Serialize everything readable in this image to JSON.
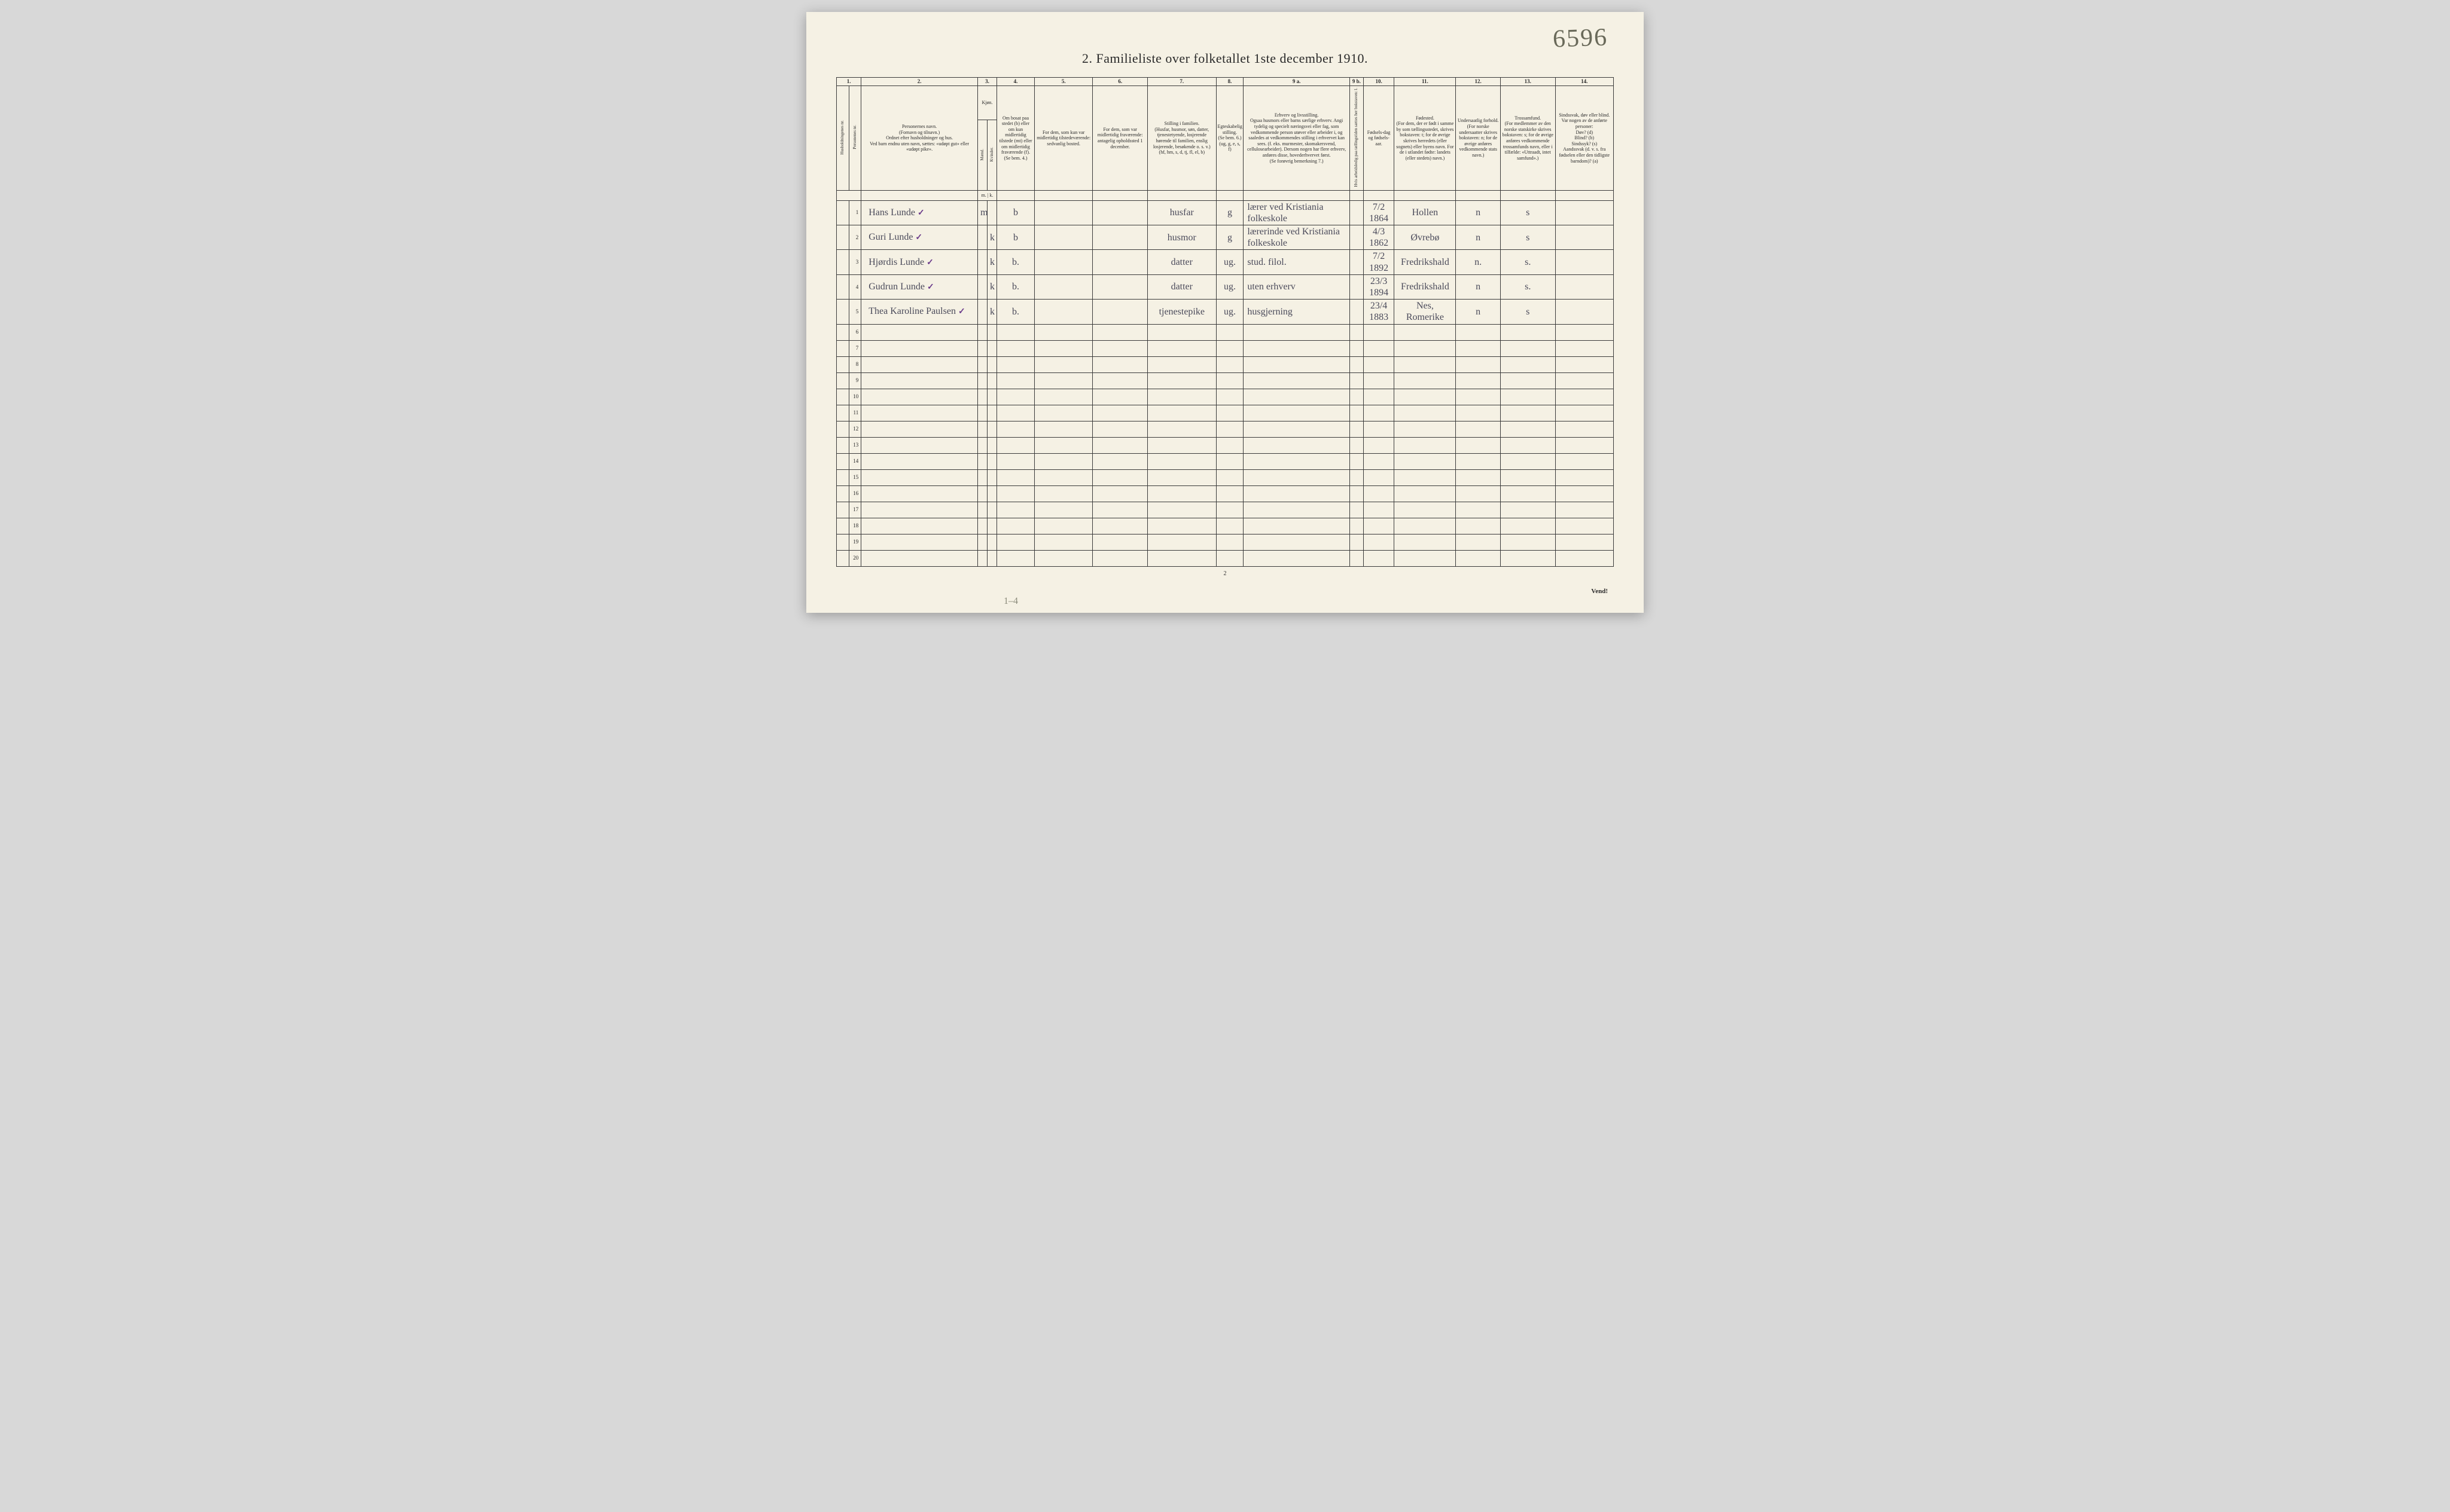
{
  "corner_annotation": "6596",
  "title": "2.  Familieliste over  folketallet 1ste december 1910.",
  "colnums": [
    "1.",
    "2.",
    "3.",
    "4.",
    "5.",
    "6.",
    "7.",
    "8.",
    "9 a.",
    "9 b.",
    "10.",
    "11.",
    "12.",
    "13.",
    "14."
  ],
  "headers": {
    "col1a": "Husholdningenes nr.",
    "col1b": "Personenes nr.",
    "col2": "Personernes navn.\n(Fornavn og tilnavn.)\nOrdnet efter husholdninger og hus.\nVed barn endnu uten navn, sættes: «udøpt gut» eller «udøpt pike».",
    "col3": "Kjøn.",
    "col3a": "Mænd.",
    "col3b": "Kvinder.",
    "col3_mk": "m. | k.",
    "col4": "Om bosat paa stedet (b) eller om kun midlertidig tilstede (mt) eller om midlertidig fraværende (f). (Se bem. 4.)",
    "col5": "For dem, som kun var midlertidig tilstedeværende:\nsedvanlig bosted.",
    "col6": "For dem, som var midlertidig fraværende:\nantagelig opholdssted 1 december.",
    "col7": "Stilling i familien.\n(Husfar, husmor, søn, datter, tjenestetyende, losjerende hørende til familien, enslig losjerende, besøkende o. s. v.)\n(hf, hm, s, d, tj, fl, el, b)",
    "col8": "Egteskabelig stilling.\n(Se bem. 6.)\n(ug, g, e, s, f)",
    "col9a": "Erhverv og livsstilling.\nOgsaa husmors eller barns særlige erhverv. Angi tydelig og specielt næringsvei eller fag, som vedkommende person utøver eller arbeider i, og saaledes at vedkommendes stilling i erhvervet kan sees. (f. eks. murmester, skomakersvend, cellulosearbeider). Dersom nogen har flere erhverv, anføres disse, hovederhvervet først.\n(Se forøvrig bemerkning 7.)",
    "col9b": "Hvis arbeidsledig paa tællingstiden sættes her bokstaven: l.",
    "col10": "Fødsels-dag og fødsels-aar.",
    "col11": "Fødested.\n(For dem, der er født i samme by som tællingsstedet, skrives bokstaven: t; for de øvrige skrives herredets (eller sognets) eller byens navn. For de i utlandet fødte: landets (eller stedets) navn.)",
    "col12": "Undersaatlig forhold.\n(For norske undersaatter skrives bokstaven: n; for de øvrige anføres vedkommende stats navn.)",
    "col13": "Trossamfund.\n(For medlemmer av den norske statskirke skrives bokstaven: s; for de øvrige anføres vedkommende trossamfunds navn, eller i tilfælde: «Uttraadt, intet samfund».)",
    "col14": "Sindssvak, døv eller blind.\nVar nogen av de anførte personer:\nDøv? (d)\nBlind? (b)\nSindssyk? (s)\nAandssvak (d. v. s. fra fødselen eller den tidligste barndom)? (a)"
  },
  "rows": [
    {
      "num": "1",
      "name": "Hans Lunde",
      "check": "✓",
      "sex": "m",
      "res": "b",
      "pos": "husfar",
      "mar": "g",
      "occ": "lærer ved Kristiania folkeskole",
      "dob": "7/2 1864",
      "birthplace": "Hollen",
      "nat": "n",
      "rel": "s"
    },
    {
      "num": "2",
      "name": "Guri Lunde",
      "check": "✓",
      "sex": "k",
      "res": "b",
      "pos": "husmor",
      "mar": "g",
      "occ": "lærerinde ved Kristiania folkeskole",
      "dob": "4/3 1862",
      "birthplace": "Øvrebø",
      "nat": "n",
      "rel": "s"
    },
    {
      "num": "3",
      "name": "Hjørdis Lunde",
      "check": "✓",
      "sex": "k",
      "res": "b.",
      "pos": "datter",
      "mar": "ug.",
      "occ": "stud. filol.",
      "dob": "7/2 1892",
      "birthplace": "Fredrikshald",
      "nat": "n.",
      "rel": "s."
    },
    {
      "num": "4",
      "name": "Gudrun Lunde",
      "check": "✓",
      "sex": "k",
      "res": "b.",
      "pos": "datter",
      "mar": "ug.",
      "occ": "uten erhverv",
      "dob": "23/3 1894",
      "birthplace": "Fredrikshald",
      "nat": "n",
      "rel": "s."
    },
    {
      "num": "5",
      "name": "Thea Karoline Paulsen",
      "check": "✓",
      "sex": "k",
      "res": "b.",
      "pos": "tjenestepike",
      "mar": "ug.",
      "occ": "husgjerning",
      "dob": "23/4 1883",
      "birthplace": "Nes, Romerike",
      "nat": "n",
      "rel": "s"
    }
  ],
  "empty_rows": [
    "6",
    "7",
    "8",
    "9",
    "10",
    "11",
    "12",
    "13",
    "14",
    "15",
    "16",
    "17",
    "18",
    "19",
    "20"
  ],
  "footer_pagenum": "2",
  "footer_vend": "Vend!",
  "footer_pencil": "1–4",
  "colors": {
    "page_bg": "#f5f1e4",
    "border": "#3a3a3a",
    "print_text": "#2a2a2a",
    "handwriting": "#4a4a5a",
    "pencil": "#8a8a7a",
    "checkmark": "#6a3a8a"
  }
}
